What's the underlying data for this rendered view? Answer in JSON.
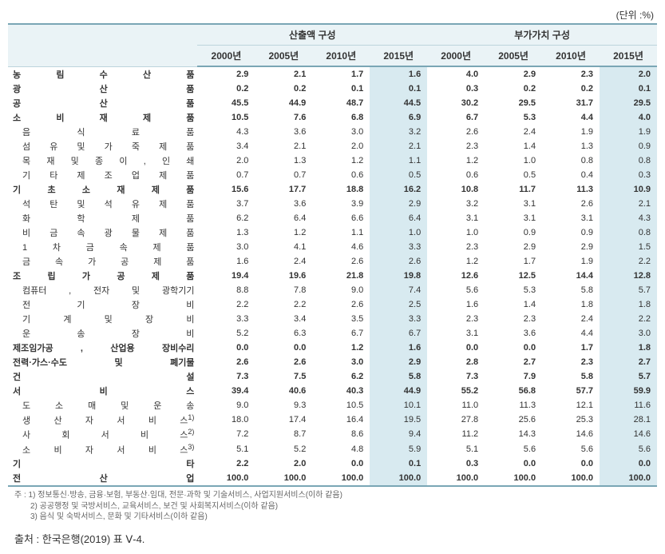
{
  "unit_label": "(단위 :%)",
  "header": {
    "group1": "산출액 구성",
    "group2": "부가가치 구성",
    "years": [
      "2000년",
      "2005년",
      "2010년",
      "2015년"
    ]
  },
  "highlight_cols": [
    3,
    7
  ],
  "colors": {
    "header_bg": "#eaf3f6",
    "highlight_bg": "#d8eaf0",
    "border": "#7aa6b5"
  },
  "rows": [
    {
      "label": "농 림 수 산 품",
      "bold": true,
      "indent": false,
      "sup": "",
      "vals": [
        "2.9",
        "2.1",
        "1.7",
        "1.6",
        "4.0",
        "2.9",
        "2.3",
        "2.0"
      ]
    },
    {
      "label": "광 산 품",
      "bold": true,
      "indent": false,
      "sup": "",
      "vals": [
        "0.2",
        "0.2",
        "0.1",
        "0.1",
        "0.3",
        "0.2",
        "0.2",
        "0.1"
      ]
    },
    {
      "label": "공 산 품",
      "bold": true,
      "indent": false,
      "sup": "",
      "vals": [
        "45.5",
        "44.9",
        "48.7",
        "44.5",
        "30.2",
        "29.5",
        "31.7",
        "29.5"
      ]
    },
    {
      "label": "소 비 재 제 품",
      "bold": true,
      "indent": false,
      "sup": "",
      "vals": [
        "10.5",
        "7.6",
        "6.8",
        "6.9",
        "6.7",
        "5.3",
        "4.4",
        "4.0"
      ]
    },
    {
      "label": "음 식 료 품",
      "bold": false,
      "indent": true,
      "sup": "",
      "vals": [
        "4.3",
        "3.6",
        "3.0",
        "3.2",
        "2.6",
        "2.4",
        "1.9",
        "1.9"
      ]
    },
    {
      "label": "섬 유 및 가 죽 제 품",
      "bold": false,
      "indent": true,
      "sup": "",
      "vals": [
        "3.4",
        "2.1",
        "2.0",
        "2.1",
        "2.3",
        "1.4",
        "1.3",
        "0.9"
      ]
    },
    {
      "label": "목 재 및 종 이 , 인 쇄",
      "bold": false,
      "indent": true,
      "sup": "",
      "vals": [
        "2.0",
        "1.3",
        "1.2",
        "1.1",
        "1.2",
        "1.0",
        "0.8",
        "0.8"
      ]
    },
    {
      "label": "기 타 제 조 업 제 품",
      "bold": false,
      "indent": true,
      "sup": "",
      "vals": [
        "0.7",
        "0.7",
        "0.6",
        "0.5",
        "0.6",
        "0.5",
        "0.4",
        "0.3"
      ]
    },
    {
      "label": "기 초 소 재 제 품",
      "bold": true,
      "indent": false,
      "sup": "",
      "vals": [
        "15.6",
        "17.7",
        "18.8",
        "16.2",
        "10.8",
        "11.7",
        "11.3",
        "10.9"
      ]
    },
    {
      "label": "석 탄 및 석 유 제 품",
      "bold": false,
      "indent": true,
      "sup": "",
      "vals": [
        "3.7",
        "3.6",
        "3.9",
        "2.9",
        "3.2",
        "3.1",
        "2.6",
        "2.1"
      ]
    },
    {
      "label": "화 학 제 품",
      "bold": false,
      "indent": true,
      "sup": "",
      "vals": [
        "6.2",
        "6.4",
        "6.6",
        "6.4",
        "3.1",
        "3.1",
        "3.1",
        "4.3"
      ]
    },
    {
      "label": "비 금 속 광 물 제 품",
      "bold": false,
      "indent": true,
      "sup": "",
      "vals": [
        "1.3",
        "1.2",
        "1.1",
        "1.0",
        "1.0",
        "0.9",
        "0.9",
        "0.8"
      ]
    },
    {
      "label": "1 차 금 속 제 품",
      "bold": false,
      "indent": true,
      "sup": "",
      "vals": [
        "3.0",
        "4.1",
        "4.6",
        "3.3",
        "2.3",
        "2.9",
        "2.9",
        "1.5"
      ]
    },
    {
      "label": "금 속 가 공 제 품",
      "bold": false,
      "indent": true,
      "sup": "",
      "vals": [
        "1.6",
        "2.4",
        "2.6",
        "2.6",
        "1.2",
        "1.7",
        "1.9",
        "2.2"
      ]
    },
    {
      "label": "조 립 가 공 제 품",
      "bold": true,
      "indent": false,
      "sup": "",
      "vals": [
        "19.4",
        "19.6",
        "21.8",
        "19.8",
        "12.6",
        "12.5",
        "14.4",
        "12.8"
      ]
    },
    {
      "label": "컴퓨터 , 전자 및 광학기기",
      "bold": false,
      "indent": true,
      "sup": "",
      "vals": [
        "8.8",
        "7.8",
        "9.0",
        "7.4",
        "5.6",
        "5.3",
        "5.8",
        "5.7"
      ]
    },
    {
      "label": "전 기 장 비",
      "bold": false,
      "indent": true,
      "sup": "",
      "vals": [
        "2.2",
        "2.2",
        "2.6",
        "2.5",
        "1.6",
        "1.4",
        "1.8",
        "1.8"
      ]
    },
    {
      "label": "기 계 및 장 비",
      "bold": false,
      "indent": true,
      "sup": "",
      "vals": [
        "3.3",
        "3.4",
        "3.5",
        "3.3",
        "2.3",
        "2.3",
        "2.4",
        "2.2"
      ]
    },
    {
      "label": "운 송 장 비",
      "bold": false,
      "indent": true,
      "sup": "",
      "vals": [
        "5.2",
        "6.3",
        "6.7",
        "6.7",
        "3.1",
        "3.6",
        "4.4",
        "3.0"
      ]
    },
    {
      "label": "제조임가공 , 산업용 장비수리",
      "bold": true,
      "indent": false,
      "sup": "",
      "vals": [
        "0.0",
        "0.0",
        "1.2",
        "1.6",
        "0.0",
        "0.0",
        "1.7",
        "1.8"
      ]
    },
    {
      "label": "전력·가스·수도 및 폐기물",
      "bold": true,
      "indent": false,
      "sup": "",
      "vals": [
        "2.6",
        "2.6",
        "3.0",
        "2.9",
        "2.8",
        "2.7",
        "2.3",
        "2.7"
      ]
    },
    {
      "label": "건 설",
      "bold": true,
      "indent": false,
      "sup": "",
      "vals": [
        "7.3",
        "7.5",
        "6.2",
        "5.8",
        "7.3",
        "7.9",
        "5.8",
        "5.7"
      ]
    },
    {
      "label": "서 비 스",
      "bold": true,
      "indent": false,
      "sup": "",
      "vals": [
        "39.4",
        "40.6",
        "40.3",
        "44.9",
        "55.2",
        "56.8",
        "57.7",
        "59.9"
      ]
    },
    {
      "label": "도 소 매 및 운 송",
      "bold": false,
      "indent": true,
      "sup": "",
      "vals": [
        "9.0",
        "9.3",
        "10.5",
        "10.1",
        "11.0",
        "11.3",
        "12.1",
        "11.6"
      ]
    },
    {
      "label": "생 산 자 서 비 스",
      "bold": false,
      "indent": true,
      "sup": "1)",
      "vals": [
        "18.0",
        "17.4",
        "16.4",
        "19.5",
        "27.8",
        "25.6",
        "25.3",
        "28.1"
      ]
    },
    {
      "label": "사 회 서 비 스",
      "bold": false,
      "indent": true,
      "sup": "2)",
      "vals": [
        "7.2",
        "8.7",
        "8.6",
        "9.4",
        "11.2",
        "14.3",
        "14.6",
        "14.6"
      ]
    },
    {
      "label": "소 비 자 서 비 스",
      "bold": false,
      "indent": true,
      "sup": "3)",
      "vals": [
        "5.1",
        "5.2",
        "4.8",
        "5.9",
        "5.1",
        "5.6",
        "5.6",
        "5.6"
      ]
    },
    {
      "label": "기 타",
      "bold": true,
      "indent": false,
      "sup": "",
      "vals": [
        "2.2",
        "2.0",
        "0.0",
        "0.1",
        "0.3",
        "0.0",
        "0.0",
        "0.0"
      ]
    },
    {
      "label": "전 산 업",
      "bold": true,
      "indent": false,
      "sup": "",
      "vals": [
        "100.0",
        "100.0",
        "100.0",
        "100.0",
        "100.0",
        "100.0",
        "100.0",
        "100.0"
      ],
      "last": true
    }
  ],
  "footnotes": [
    "주 : 1) 정보통신·방송, 금융·보험, 부동산·임대, 전문·과학 및 기술서비스, 사업지원서비스(이하 같음)",
    "　　2) 공공행정 및 국방서비스, 교육서비스, 보건 및 사회복지서비스(이하 같음)",
    "　　3) 음식 및 숙박서비스, 문화 및 기타서비스(이하 같음)"
  ],
  "source": "출처 : 한국은행(2019) 표 Ⅴ-4."
}
